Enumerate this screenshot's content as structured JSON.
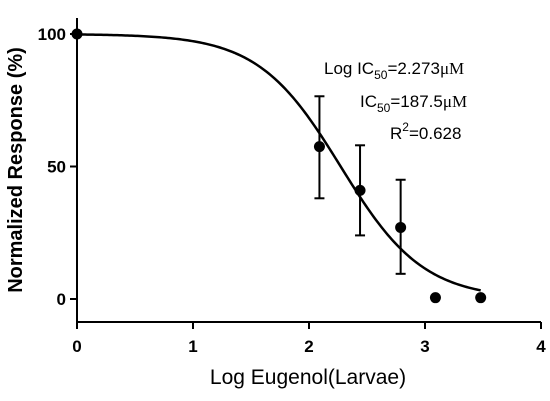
{
  "chart_data": {
    "type": "scatter",
    "xlabel": "Log Eugenol(Larvae)",
    "ylabel": "Normalized Response (%)",
    "xlim": [
      0,
      4
    ],
    "ylim": [
      0,
      100
    ],
    "x_ticks": [
      "0",
      "1",
      "2",
      "3",
      "4"
    ],
    "y_ticks": [
      "0",
      "50",
      "100"
    ],
    "grid": false,
    "series": [
      {
        "x": [
          0,
          2.09,
          2.44,
          2.79,
          3.09,
          3.48
        ],
        "y": [
          100,
          57.5,
          41,
          27,
          0.5,
          0.5
        ],
        "error_low": [
          null,
          38,
          24,
          9.5,
          null,
          null
        ],
        "error_high": [
          null,
          76.5,
          58,
          45,
          null,
          null
        ]
      }
    ],
    "fit_curve": {
      "model": "sigmoidal dose-response",
      "top": 100,
      "bottom": 0,
      "log_ic50": 2.273,
      "hill_slope": -1.22,
      "x_range": [
        0,
        3.48
      ]
    },
    "annotations": {
      "log_ic50": {
        "prefix": "Log IC",
        "sub": "50",
        "value": "=2.273",
        "unit": "μM"
      },
      "ic50": {
        "prefix": "IC",
        "sub": "50",
        "value": "=187.5",
        "unit": "μM"
      },
      "r2": {
        "prefix": "R",
        "sup": "2",
        "value": "=0.628"
      }
    }
  }
}
